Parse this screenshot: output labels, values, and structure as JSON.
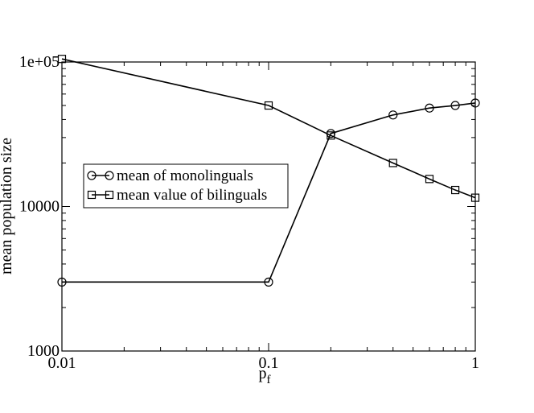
{
  "chart_data": {
    "type": "line",
    "xlabel": "p",
    "xlabel_sub": "f",
    "ylabel": "mean population size",
    "x_scale": "log",
    "y_scale": "log",
    "xlim": [
      0.01,
      1
    ],
    "ylim": [
      1000,
      100000
    ],
    "x_ticks": [
      {
        "value": 0.01,
        "label": "0.01"
      },
      {
        "value": 0.1,
        "label": "0.1"
      },
      {
        "value": 1,
        "label": "1"
      }
    ],
    "y_ticks": [
      {
        "value": 1000,
        "label": "1000"
      },
      {
        "value": 10000,
        "label": "10000"
      },
      {
        "value": 100000,
        "label": "1e+05"
      }
    ],
    "grid": false,
    "legend_position": "center-left",
    "series": [
      {
        "name": "mean of monolinguals",
        "marker": "circle",
        "color": "#000000",
        "x": [
          0.01,
          0.1,
          0.2,
          0.4,
          0.6,
          0.8,
          1.0
        ],
        "y": [
          3000,
          3000,
          32000,
          43000,
          48000,
          50000,
          52000
        ]
      },
      {
        "name": "mean value of bilinguals",
        "marker": "square",
        "color": "#000000",
        "x": [
          0.01,
          0.1,
          0.2,
          0.4,
          0.6,
          0.8,
          1.0
        ],
        "y": [
          105000,
          50000,
          31000,
          20000,
          15500,
          13000,
          11500
        ]
      }
    ]
  }
}
